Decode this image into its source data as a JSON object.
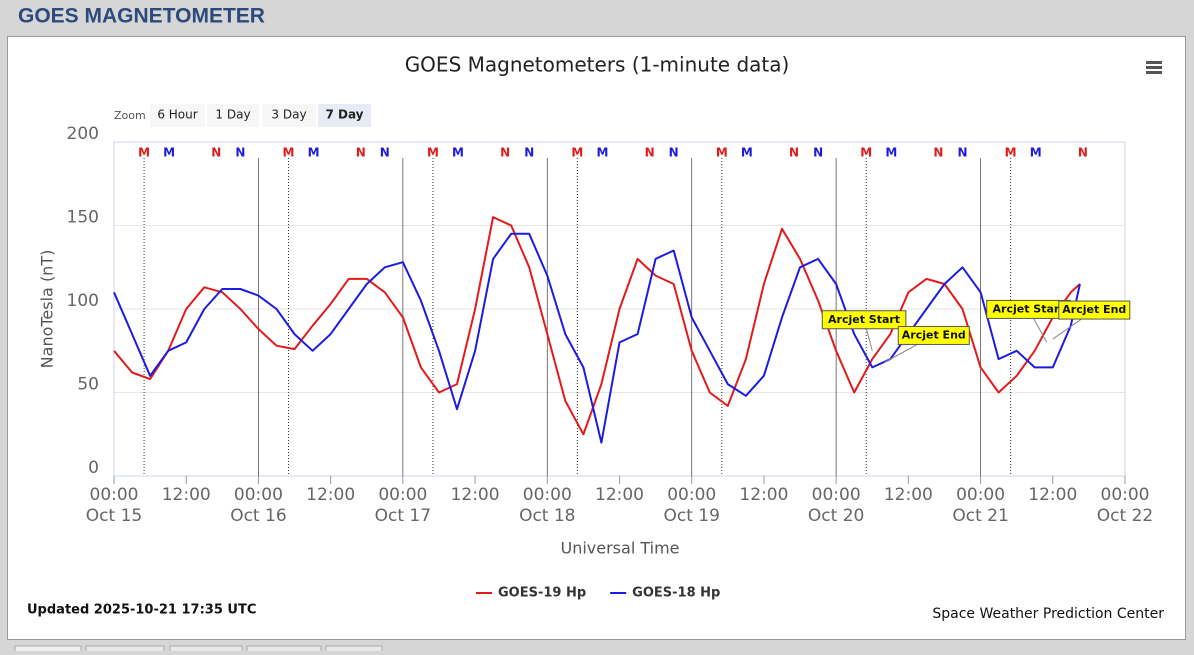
{
  "header": {
    "title": "GOES MAGNETOMETER"
  },
  "zoom": {
    "label": "Zoom",
    "buttons": [
      "6 Hour",
      "1 Day",
      "3 Day",
      "7 Day"
    ],
    "selected": 3
  },
  "footer": {
    "updated": "Updated 2025-10-21 17:35 UTC",
    "credit": "Space Weather Prediction Center"
  },
  "chart_data": {
    "type": "line",
    "title": "GOES Magnetometers (1-minute data)",
    "y_label": "NanoTesla (nT)",
    "x_label": "Universal Time",
    "ylim": [
      0,
      200
    ],
    "yticks": [
      0,
      50,
      100,
      150,
      200
    ],
    "grid": true,
    "xlim": [
      "Oct 15 00:00",
      "Oct 22 00:00"
    ],
    "xticks": [
      {
        "value": "Oct 15 00:00",
        "label": "00:00",
        "date": "Oct 15"
      },
      {
        "value": "Oct 15 12:00",
        "label": "12:00"
      },
      {
        "value": "Oct 16 00:00",
        "label": "00:00",
        "date": "Oct 16"
      },
      {
        "value": "Oct 16 12:00",
        "label": "12:00"
      },
      {
        "value": "Oct 17 00:00",
        "label": "00:00",
        "date": "Oct 17"
      },
      {
        "value": "Oct 17 12:00",
        "label": "12:00"
      },
      {
        "value": "Oct 18 00:00",
        "label": "00:00",
        "date": "Oct 18"
      },
      {
        "value": "Oct 18 12:00",
        "label": "12:00"
      },
      {
        "value": "Oct 19 00:00",
        "label": "00:00",
        "date": "Oct 19"
      },
      {
        "value": "Oct 19 12:00",
        "label": "12:00"
      },
      {
        "value": "Oct 20 00:00",
        "label": "00:00",
        "date": "Oct 20"
      },
      {
        "value": "Oct 20 12:00",
        "label": "12:00"
      },
      {
        "value": "Oct 21 00:00",
        "label": "00:00",
        "date": "Oct 21"
      },
      {
        "value": "Oct 21 12:00",
        "label": "12:00"
      },
      {
        "value": "Oct 22 00:00",
        "label": "00:00",
        "date": "Oct 22"
      }
    ],
    "x": [
      "Oct 15 00:00",
      "Oct 15 03:00",
      "Oct 15 06:00",
      "Oct 15 09:00",
      "Oct 15 12:00",
      "Oct 15 15:00",
      "Oct 15 18:00",
      "Oct 15 21:00",
      "Oct 16 00:00",
      "Oct 16 03:00",
      "Oct 16 06:00",
      "Oct 16 09:00",
      "Oct 16 12:00",
      "Oct 16 15:00",
      "Oct 16 18:00",
      "Oct 16 21:00",
      "Oct 17 00:00",
      "Oct 17 03:00",
      "Oct 17 06:00",
      "Oct 17 09:00",
      "Oct 17 12:00",
      "Oct 17 15:00",
      "Oct 17 18:00",
      "Oct 17 21:00",
      "Oct 18 00:00",
      "Oct 18 03:00",
      "Oct 18 06:00",
      "Oct 18 09:00",
      "Oct 18 12:00",
      "Oct 18 15:00",
      "Oct 18 18:00",
      "Oct 18 21:00",
      "Oct 19 00:00",
      "Oct 19 03:00",
      "Oct 19 06:00",
      "Oct 19 09:00",
      "Oct 19 12:00",
      "Oct 19 15:00",
      "Oct 19 18:00",
      "Oct 19 21:00",
      "Oct 20 00:00",
      "Oct 20 03:00",
      "Oct 20 06:00",
      "Oct 20 09:00",
      "Oct 20 12:00",
      "Oct 20 15:00",
      "Oct 20 18:00",
      "Oct 20 21:00",
      "Oct 21 00:00",
      "Oct 21 03:00",
      "Oct 21 06:00",
      "Oct 21 09:00",
      "Oct 21 12:00",
      "Oct 21 15:00",
      "Oct 21 16:30"
    ],
    "series": [
      {
        "name": "GOES-19 Hp",
        "color": "#e31a1c",
        "values": [
          75,
          62,
          58,
          75,
          100,
          113,
          110,
          100,
          88,
          78,
          76,
          90,
          103,
          118,
          118,
          110,
          95,
          65,
          50,
          55,
          100,
          155,
          150,
          125,
          85,
          45,
          25,
          55,
          100,
          130,
          120,
          115,
          75,
          50,
          42,
          70,
          115,
          148,
          130,
          105,
          75,
          50,
          70,
          85,
          110,
          118,
          115,
          100,
          65,
          50,
          60,
          75,
          95,
          110,
          115
        ]
      },
      {
        "name": "GOES-18 Hp",
        "color": "#1c1ce0",
        "values": [
          110,
          85,
          60,
          75,
          80,
          100,
          112,
          112,
          108,
          100,
          85,
          75,
          85,
          100,
          115,
          125,
          128,
          105,
          75,
          40,
          75,
          130,
          145,
          145,
          120,
          85,
          65,
          20,
          80,
          85,
          130,
          135,
          95,
          75,
          55,
          48,
          60,
          95,
          125,
          130,
          115,
          85,
          65,
          70,
          85,
          100,
          115,
          125,
          110,
          70,
          75,
          65,
          65,
          90,
          115
        ]
      }
    ],
    "markers": [
      {
        "label": "M",
        "color": "#e31a1c",
        "dotted": true,
        "times": [
          "Oct 15 05:00",
          "Oct 16 05:00",
          "Oct 17 05:00",
          "Oct 18 05:00",
          "Oct 19 05:00",
          "Oct 20 05:00",
          "Oct 21 05:00"
        ]
      },
      {
        "label": "M",
        "color": "#1c1ce0",
        "dotted": false,
        "times": [
          "Oct 15 09:10",
          "Oct 16 09:10",
          "Oct 17 09:10",
          "Oct 18 09:10",
          "Oct 19 09:10",
          "Oct 20 09:10",
          "Oct 21 09:10"
        ]
      },
      {
        "label": "N",
        "color": "#e31a1c",
        "dotted": false,
        "times": [
          "Oct 15 17:00",
          "Oct 16 17:00",
          "Oct 17 17:00",
          "Oct 18 17:00",
          "Oct 19 17:00",
          "Oct 20 17:00",
          "Oct 21 17:00"
        ]
      },
      {
        "label": "N",
        "color": "#1c1ce0",
        "dotted": false,
        "times": [
          "Oct 15 21:00",
          "Oct 16 21:00",
          "Oct 17 21:00",
          "Oct 18 21:00",
          "Oct 19 21:00",
          "Oct 20 21:00"
        ]
      }
    ],
    "annotations": [
      {
        "text": "Arcjet Start",
        "x": "Oct 20 06:00",
        "y": 75
      },
      {
        "text": "Arcjet End",
        "x": "Oct 20 08:00",
        "y": 68
      },
      {
        "text": "Arcjet Start",
        "x": "Oct 21 11:00",
        "y": 80
      },
      {
        "text": "Arcjet End",
        "x": "Oct 21 12:00",
        "y": 82
      }
    ]
  }
}
